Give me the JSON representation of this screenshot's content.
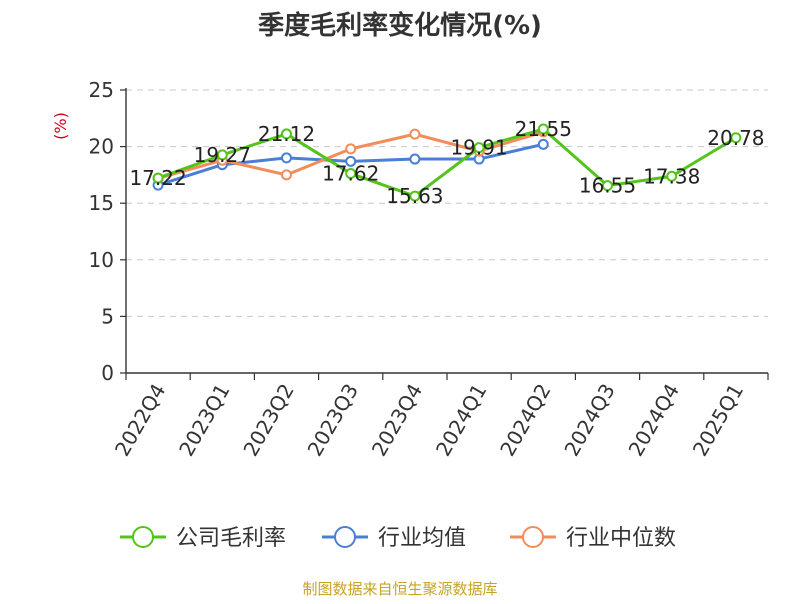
{
  "chart_data": {
    "type": "line",
    "title": "季度毛利率变化情况(%)",
    "ylabel": "(%)",
    "xlabel": "",
    "ylim": [
      0,
      25
    ],
    "yticks": [
      0,
      5,
      10,
      15,
      20,
      25
    ],
    "grid": true,
    "legend_position": "bottom",
    "categories": [
      "2022Q4",
      "2023Q1",
      "2023Q2",
      "2023Q3",
      "2023Q4",
      "2024Q1",
      "2024Q2",
      "2024Q3",
      "2024Q4",
      "2025Q1"
    ],
    "series": [
      {
        "name": "公司毛利率",
        "color": "#52c41a",
        "values": [
          17.22,
          19.27,
          21.12,
          17.62,
          15.63,
          19.91,
          21.55,
          16.55,
          17.38,
          20.78
        ],
        "labels": [
          "17.22",
          "19.27",
          "21.12",
          "17.62",
          "15.63",
          "19.91",
          "21.55",
          "16.55",
          "17.38",
          "20.78"
        ]
      },
      {
        "name": "行业均值",
        "color": "#4a7fd6",
        "values": [
          16.6,
          18.4,
          19.0,
          18.7,
          18.9,
          18.9,
          20.2,
          null,
          null,
          null
        ]
      },
      {
        "name": "行业中位数",
        "color": "#f28c5a",
        "values": [
          17.2,
          18.8,
          17.5,
          19.8,
          21.1,
          19.6,
          21.3,
          null,
          null,
          null
        ]
      }
    ]
  },
  "source": "制图数据来自恒生聚源数据库"
}
